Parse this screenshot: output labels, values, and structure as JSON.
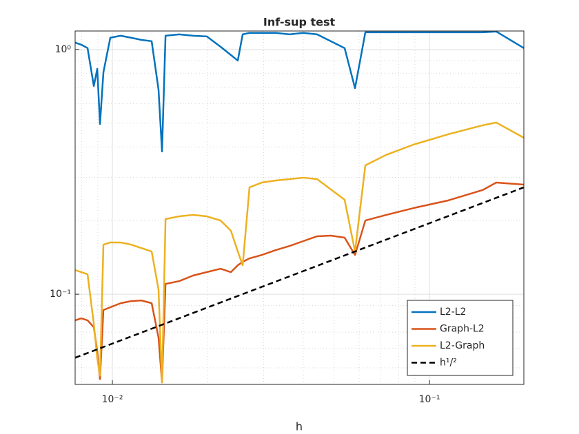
{
  "chart_data": {
    "type": "line",
    "title": "Inf-sup test",
    "x_label": "h",
    "log_x": true,
    "log_y": true,
    "grid": true,
    "minor_grid": true,
    "legend": "lower right",
    "xlim": [
      0.00763,
      0.1985
    ],
    "ylim": [
      0.0428,
      1.19
    ],
    "xticks": [
      {
        "value": 0.01,
        "label": "10⁻²"
      },
      {
        "value": 0.1,
        "label": "10⁻¹"
      }
    ],
    "yticks": [
      {
        "value": 0.1,
        "label": "10⁻¹"
      },
      {
        "value": 1,
        "label": "10⁰"
      }
    ],
    "xminor": [
      0.008,
      0.009,
      0.02,
      0.03,
      0.04,
      0.05,
      0.06,
      0.07,
      0.08,
      0.09
    ],
    "yminor": [
      0.05,
      0.06,
      0.07,
      0.08,
      0.09,
      0.2,
      0.3,
      0.4,
      0.5,
      0.6,
      0.7,
      0.8,
      0.9
    ],
    "x": [
      0.00763,
      0.00798,
      0.00835,
      0.00874,
      0.00896,
      0.00914,
      0.00937,
      0.00985,
      0.01062,
      0.01145,
      0.01234,
      0.0133,
      0.01398,
      0.01434,
      0.01471,
      0.01625,
      0.01796,
      0.01985,
      0.02194,
      0.02365,
      0.02486,
      0.02576,
      0.02707,
      0.02963,
      0.03274,
      0.0362,
      0.04001,
      0.04422,
      0.04887,
      0.05401,
      0.05824,
      0.06279,
      0.07295,
      0.08913,
      0.1145,
      0.147,
      0.1625,
      0.1985
    ],
    "series": [
      {
        "name": "L2-L2",
        "color": "#0072bd",
        "values": [
          1.067,
          1.046,
          1.013,
          0.709,
          0.834,
          0.496,
          0.807,
          1.117,
          1.138,
          1.117,
          1.095,
          1.081,
          0.686,
          0.383,
          1.138,
          1.153,
          1.138,
          1.131,
          1.026,
          0.949,
          0.901,
          1.153,
          1.169,
          1.169,
          1.169,
          1.153,
          1.169,
          1.153,
          1.081,
          1.013,
          0.695,
          1.176,
          1.176,
          1.176,
          1.176,
          1.176,
          1.184,
          1.013
        ]
      },
      {
        "name": "Graph-L2",
        "color": "#d95319",
        "values": [
          0.0782,
          0.0797,
          0.0782,
          0.0732,
          0.0584,
          0.045,
          0.0862,
          0.0884,
          0.0919,
          0.0937,
          0.0943,
          0.0919,
          0.0665,
          0.0436,
          0.1102,
          0.1131,
          0.1192,
          0.1231,
          0.1271,
          0.1231,
          0.1313,
          0.1356,
          0.1401,
          0.1447,
          0.1514,
          0.1574,
          0.1648,
          0.1725,
          0.1736,
          0.1702,
          0.1447,
          0.2001,
          0.2108,
          0.2249,
          0.2416,
          0.2663,
          0.286,
          0.2805
        ]
      },
      {
        "name": "L2-Graph",
        "color": "#edb120",
        "values": [
          0.1255,
          0.1231,
          0.1207,
          0.0756,
          0.0547,
          0.0465,
          0.1595,
          0.1627,
          0.1627,
          0.1595,
          0.1544,
          0.1495,
          0.1046,
          0.0436,
          0.2028,
          0.2081,
          0.2108,
          0.2081,
          0.2001,
          0.1816,
          0.1495,
          0.1313,
          0.2733,
          0.286,
          0.2916,
          0.2954,
          0.2993,
          0.2954,
          0.268,
          0.2431,
          0.1495,
          0.3363,
          0.3707,
          0.4087,
          0.4502,
          0.4898,
          0.5028,
          0.4358
        ]
      },
      {
        "name": "h¹/²",
        "color": "#000000",
        "dash": true,
        "x": [
          0.00763,
          0.1985
        ],
        "values": [
          0.055,
          0.2733
        ]
      }
    ]
  }
}
